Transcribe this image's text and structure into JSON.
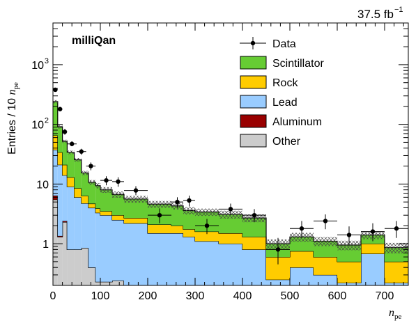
{
  "chart_data": {
    "type": "bar",
    "subtype": "stacked-histogram",
    "lumi_label": "37.5 fb",
    "lumi_exponent": "−1",
    "experiment_label": "milliQan",
    "ylabel_prefix": "Entries / 10 ",
    "ylabel_var": "n",
    "ylabel_sub": "pe",
    "xlabel_var": "n",
    "xlabel_sub": "pe",
    "xlim": [
      0,
      750
    ],
    "ylim": [
      0.2,
      5000
    ],
    "log_y": true,
    "legend_placement": "top-right",
    "x_ticks": [
      {
        "v": 0,
        "label": "0"
      },
      {
        "v": 100,
        "label": "100"
      },
      {
        "v": 200,
        "label": "200"
      },
      {
        "v": 300,
        "label": "300"
      },
      {
        "v": 400,
        "label": "400"
      },
      {
        "v": 500,
        "label": "500"
      },
      {
        "v": 600,
        "label": "600"
      },
      {
        "v": 700,
        "label": "700"
      }
    ],
    "y_ticks": [
      {
        "v": 1,
        "base": "1",
        "exp": ""
      },
      {
        "v": 10,
        "base": "10",
        "exp": ""
      },
      {
        "v": 100,
        "base": "10",
        "exp": "2"
      },
      {
        "v": 1000,
        "base": "10",
        "exp": "3"
      }
    ],
    "bin_edges": [
      0,
      10,
      20,
      30,
      45,
      60,
      75,
      90,
      100,
      125,
      150,
      200,
      250,
      275,
      300,
      350,
      400,
      450,
      500,
      550,
      600,
      650,
      700,
      750
    ],
    "series": [
      {
        "name": "Other",
        "color": "#cccccc",
        "values": [
          5.5,
          1.3,
          2.3,
          0.8,
          0.8,
          0.85,
          0.4,
          0.23,
          0.23,
          0.24,
          0,
          0,
          0,
          0,
          0,
          0,
          0,
          0,
          0,
          0,
          0,
          0,
          0
        ]
      },
      {
        "name": "Aluminum",
        "color": "#990000",
        "values": [
          0.9,
          0.05,
          0.1,
          0,
          0,
          0,
          0,
          0,
          0,
          0,
          0,
          0,
          0,
          0,
          0,
          0,
          0,
          0,
          0,
          0,
          0,
          0,
          0
        ]
      },
      {
        "name": "Lead",
        "color": "#99ccff",
        "values": [
          31,
          19.7,
          11.6,
          8.2,
          5.2,
          3.9,
          3.6,
          3.07,
          2.77,
          2.26,
          2.2,
          1.5,
          1.5,
          1.3,
          1.1,
          1.0,
          0.8,
          0.25,
          0.4,
          0.3,
          0.22,
          0.68,
          0.22
        ]
      },
      {
        "name": "Rock",
        "color": "#ffcc00",
        "values": [
          28,
          13,
          7,
          4,
          2.5,
          1.6,
          0.7,
          0.6,
          0.5,
          0.5,
          0.5,
          0.6,
          0.5,
          0.45,
          0.5,
          0.5,
          0.5,
          0.35,
          0.35,
          0.3,
          0.28,
          0.32,
          0.28
        ]
      },
      {
        "name": "Scintillator",
        "color": "#66cc33",
        "values": [
          175,
          57,
          31,
          21,
          17,
          9,
          6,
          5.5,
          4.5,
          3.7,
          2.9,
          2.5,
          2.3,
          1.85,
          1.8,
          1.6,
          1.4,
          0.4,
          0.55,
          0.5,
          0.45,
          0.4,
          0.36
        ]
      }
    ],
    "uncertainty_band": [
      0.06,
      0.06,
      0.06,
      0.07,
      0.07,
      0.08,
      0.09,
      0.1,
      0.11,
      0.12,
      0.13,
      0.13,
      0.13,
      0.14,
      0.14,
      0.15,
      0.15,
      0.18,
      0.17,
      0.17,
      0.18,
      0.15,
      0.2
    ],
    "data_points": [
      {
        "x": 5,
        "y": 380,
        "xerr": 5,
        "ylo": 360,
        "yhi": 400
      },
      {
        "x": 15,
        "y": 180,
        "xerr": 5,
        "ylo": 168,
        "yhi": 194
      },
      {
        "x": 25,
        "y": 75,
        "xerr": 5,
        "ylo": 67,
        "yhi": 84
      },
      {
        "x": 40,
        "y": 47,
        "xerr": 10,
        "ylo": 43,
        "yhi": 52
      },
      {
        "x": 60,
        "y": 35,
        "xerr": 10,
        "ylo": 31,
        "yhi": 39
      },
      {
        "x": 80,
        "y": 20,
        "xerr": 10,
        "ylo": 17,
        "yhi": 23
      },
      {
        "x": 112.5,
        "y": 11.5,
        "xerr": 12.5,
        "ylo": 9.5,
        "yhi": 13.5
      },
      {
        "x": 137.5,
        "y": 11,
        "xerr": 12.5,
        "ylo": 9,
        "yhi": 13
      },
      {
        "x": 175,
        "y": 7.8,
        "xerr": 25,
        "ylo": 6.5,
        "yhi": 9.2
      },
      {
        "x": 225,
        "y": 3.0,
        "xerr": 25,
        "ylo": 2.2,
        "yhi": 3.9
      },
      {
        "x": 262.5,
        "y": 5.0,
        "xerr": 12.5,
        "ylo": 4.0,
        "yhi": 6.0
      },
      {
        "x": 287.5,
        "y": 5.3,
        "xerr": 12.5,
        "ylo": 4.2,
        "yhi": 6.4
      },
      {
        "x": 325,
        "y": 2.0,
        "xerr": 25,
        "ylo": 1.45,
        "yhi": 2.6
      },
      {
        "x": 375,
        "y": 3.8,
        "xerr": 25,
        "ylo": 3.0,
        "yhi": 4.7
      },
      {
        "x": 425,
        "y": 3.0,
        "xerr": 25,
        "ylo": 2.3,
        "yhi": 3.8
      },
      {
        "x": 475,
        "y": 0.8,
        "xerr": 25,
        "ylo": 0.45,
        "yhi": 1.25
      },
      {
        "x": 525,
        "y": 1.8,
        "xerr": 25,
        "ylo": 1.25,
        "yhi": 2.4
      },
      {
        "x": 575,
        "y": 2.4,
        "xerr": 25,
        "ylo": 1.75,
        "yhi": 3.1
      },
      {
        "x": 625,
        "y": 1.4,
        "xerr": 25,
        "ylo": 0.95,
        "yhi": 1.95
      },
      {
        "x": 675,
        "y": 1.6,
        "xerr": 25,
        "ylo": 1.1,
        "yhi": 2.2
      },
      {
        "x": 725,
        "y": 1.8,
        "xerr": 25,
        "ylo": 1.25,
        "yhi": 2.4
      }
    ],
    "legend": [
      {
        "name": "Data",
        "kind": "marker"
      },
      {
        "name": "Scintillator",
        "kind": "box",
        "color": "#66cc33"
      },
      {
        "name": "Rock",
        "kind": "box",
        "color": "#ffcc00"
      },
      {
        "name": "Lead",
        "kind": "box",
        "color": "#99ccff"
      },
      {
        "name": "Aluminum",
        "kind": "box",
        "color": "#990000"
      },
      {
        "name": "Other",
        "kind": "box",
        "color": "#cccccc"
      }
    ]
  }
}
